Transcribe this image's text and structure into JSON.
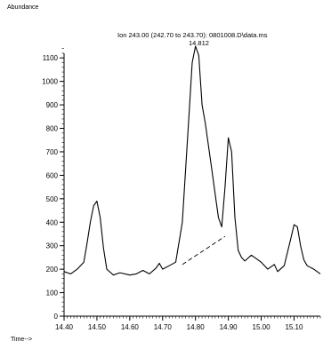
{
  "chart_data": {
    "type": "line",
    "title": "Ion 243.00 (242.70 to 243.70): 0801008.D\\data.ms",
    "peak_label": "14.812",
    "ylabel": "Abundance",
    "xlabel": "Time-->",
    "xlim": [
      14.4,
      15.18
    ],
    "ylim": [
      0,
      1150
    ],
    "x_ticks": [
      14.4,
      14.5,
      14.6,
      14.7,
      14.8,
      14.9,
      15.0,
      15.1
    ],
    "x_tick_labels": [
      "14.40",
      "14.50",
      "14.60",
      "14.70",
      "14.80",
      "14.90",
      "15.00",
      "15.10"
    ],
    "y_ticks": [
      0,
      100,
      200,
      300,
      400,
      500,
      600,
      700,
      800,
      900,
      1000,
      1100
    ],
    "y_tick_labels": [
      "0",
      "100",
      "200",
      "300",
      "400",
      "500",
      "600",
      "700",
      "800",
      "900",
      "1000",
      "1100"
    ],
    "series": [
      {
        "x": [
          14.4,
          14.42,
          14.44,
          14.46,
          14.47,
          14.48,
          14.49,
          14.5,
          14.51,
          14.52,
          14.53,
          14.55,
          14.57,
          14.6,
          14.62,
          14.64,
          14.66,
          14.68,
          14.69,
          14.7,
          14.72,
          14.74,
          14.76,
          14.78,
          14.79,
          14.8,
          14.81,
          14.82,
          14.83,
          14.84,
          14.85,
          14.86,
          14.87,
          14.88,
          14.89,
          14.9,
          14.91,
          14.92,
          14.93,
          14.94,
          14.95,
          14.97,
          15.0,
          15.02,
          15.04,
          15.05,
          15.07,
          15.09,
          15.1,
          15.11,
          15.12,
          15.13,
          15.14,
          15.16,
          15.18
        ],
        "y": [
          190,
          180,
          200,
          230,
          310,
          400,
          470,
          490,
          420,
          290,
          200,
          175,
          185,
          175,
          180,
          195,
          180,
          205,
          225,
          200,
          215,
          230,
          400,
          850,
          1080,
          1150,
          1110,
          900,
          820,
          720,
          620,
          520,
          420,
          380,
          550,
          760,
          700,
          420,
          280,
          250,
          235,
          260,
          230,
          200,
          220,
          190,
          215,
          330,
          390,
          380,
          300,
          240,
          215,
          200,
          180
        ]
      }
    ],
    "baseline_segment": {
      "x": [
        14.76,
        14.89
      ],
      "y": [
        220,
        340
      ]
    },
    "grid": false
  }
}
